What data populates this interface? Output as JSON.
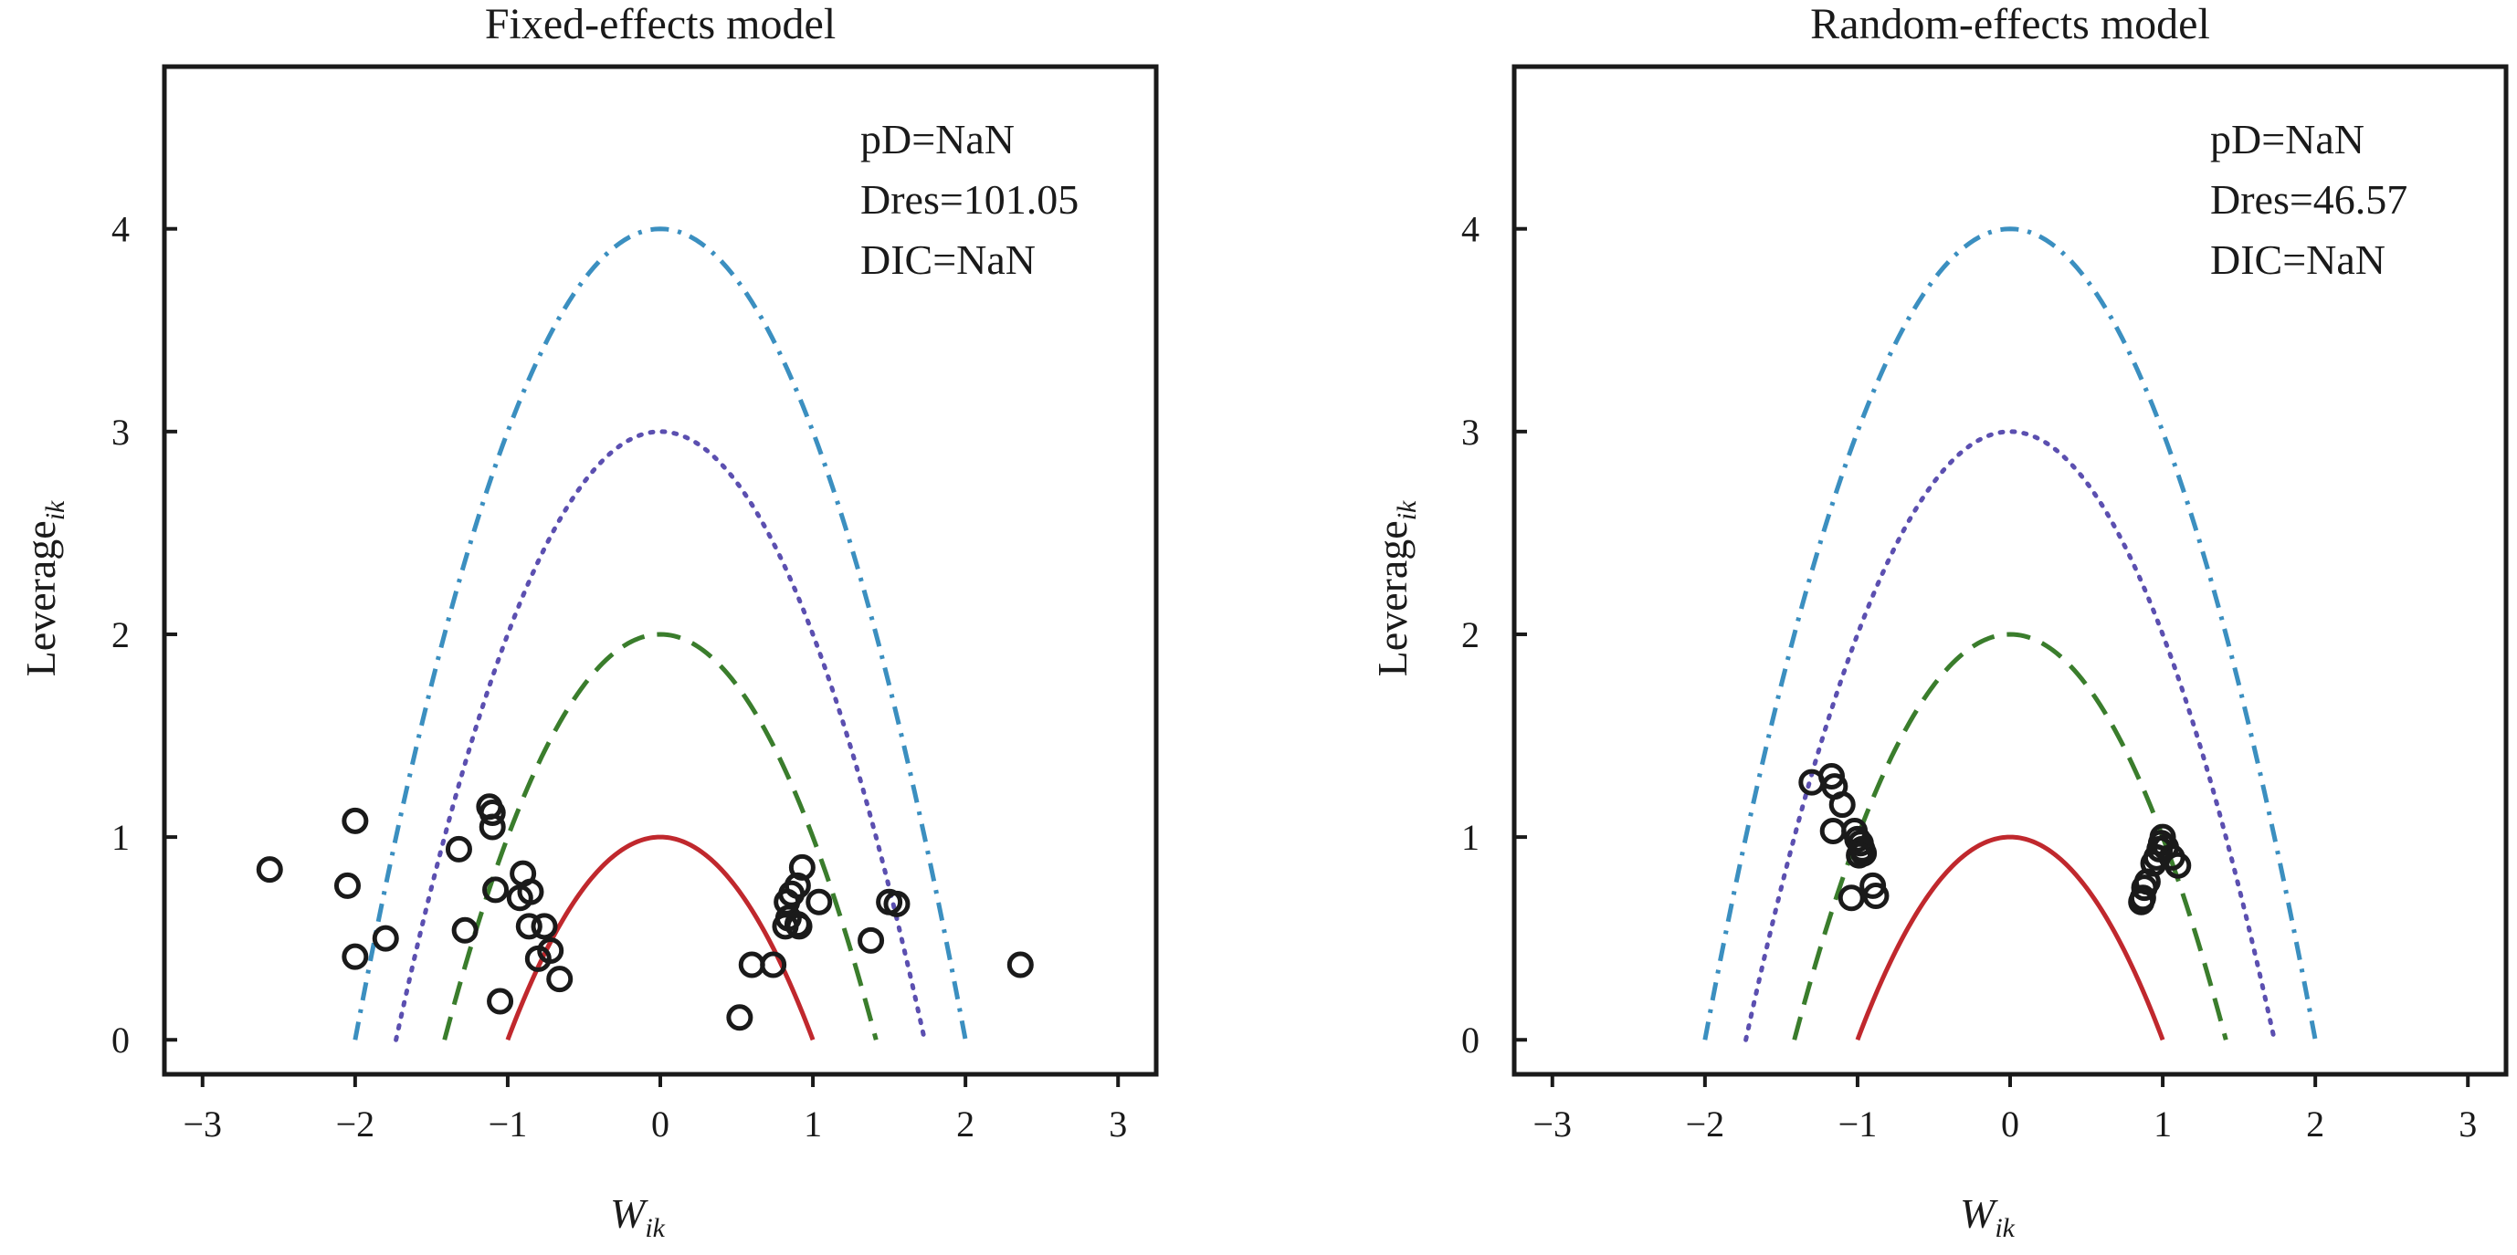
{
  "chart_data": [
    {
      "type": "scatter",
      "title": "Fixed-effects model",
      "xlabel": "W",
      "xlabel_sub": "ik",
      "ylabel": "Leverage",
      "ylabel_sub": "ik",
      "xlim": [
        -3.25,
        3.25
      ],
      "ylim": [
        -0.17,
        4.8
      ],
      "xticks": [
        -3,
        -2,
        -1,
        0,
        1,
        2,
        3
      ],
      "yticks": [
        0,
        1,
        2,
        3,
        4
      ],
      "annotations": [
        "pD=NaN",
        "Dres=101.05",
        "DIC=NaN"
      ],
      "curves": [
        {
          "c": 1,
          "style": "solid",
          "color": "#c0282d"
        },
        {
          "c": 2,
          "style": "dashed",
          "color": "#3a7d2c"
        },
        {
          "c": 3,
          "style": "dotted",
          "color": "#5b4fb0"
        },
        {
          "c": 4,
          "style": "dashdot",
          "color": "#3b8fc0"
        }
      ],
      "points": [
        [
          -2.56,
          0.84
        ],
        [
          -2.0,
          1.08
        ],
        [
          -2.05,
          0.76
        ],
        [
          -1.8,
          0.5
        ],
        [
          -2.0,
          0.41
        ],
        [
          -1.12,
          1.15
        ],
        [
          -1.1,
          1.12
        ],
        [
          -1.1,
          1.05
        ],
        [
          -1.32,
          0.94
        ],
        [
          -1.28,
          0.54
        ],
        [
          -1.08,
          0.74
        ],
        [
          -0.9,
          0.82
        ],
        [
          -0.92,
          0.7
        ],
        [
          -0.85,
          0.73
        ],
        [
          -0.86,
          0.56
        ],
        [
          -0.76,
          0.56
        ],
        [
          -0.8,
          0.4
        ],
        [
          -0.72,
          0.44
        ],
        [
          -0.66,
          0.3
        ],
        [
          -1.05,
          0.19
        ],
        [
          0.93,
          0.85
        ],
        [
          0.9,
          0.76
        ],
        [
          0.86,
          0.72
        ],
        [
          0.83,
          0.68
        ],
        [
          1.04,
          0.68
        ],
        [
          0.84,
          0.6
        ],
        [
          0.82,
          0.56
        ],
        [
          0.9,
          0.57
        ],
        [
          0.91,
          0.56
        ],
        [
          0.6,
          0.37
        ],
        [
          0.74,
          0.37
        ],
        [
          0.52,
          0.11
        ],
        [
          1.38,
          0.49
        ],
        [
          1.5,
          0.68
        ],
        [
          1.55,
          0.67
        ],
        [
          2.36,
          0.37
        ]
      ]
    },
    {
      "type": "scatter",
      "title": "Random-effects model",
      "xlabel": "W",
      "xlabel_sub": "ik",
      "ylabel": "Leverage",
      "ylabel_sub": "ik",
      "xlim": [
        -3.25,
        3.25
      ],
      "ylim": [
        -0.17,
        4.8
      ],
      "xticks": [
        -3,
        -2,
        -1,
        0,
        1,
        2,
        3
      ],
      "yticks": [
        0,
        1,
        2,
        3,
        4
      ],
      "annotations": [
        "pD=NaN",
        "Dres=46.57",
        "DIC=NaN"
      ],
      "curves": [
        {
          "c": 1,
          "style": "solid",
          "color": "#c0282d"
        },
        {
          "c": 2,
          "style": "dashed",
          "color": "#3a7d2c"
        },
        {
          "c": 3,
          "style": "dotted",
          "color": "#5b4fb0"
        },
        {
          "c": 4,
          "style": "dashdot",
          "color": "#3b8fc0"
        }
      ],
      "points": [
        [
          -1.3,
          1.27
        ],
        [
          -1.17,
          1.3
        ],
        [
          -1.15,
          1.25
        ],
        [
          -1.1,
          1.16
        ],
        [
          -1.16,
          1.03
        ],
        [
          -1.02,
          1.03
        ],
        [
          -1.0,
          0.99
        ],
        [
          -0.98,
          0.97
        ],
        [
          -0.97,
          0.94
        ],
        [
          -0.96,
          0.92
        ],
        [
          -0.99,
          0.91
        ],
        [
          -1.04,
          0.7
        ],
        [
          -0.9,
          0.76
        ],
        [
          -0.88,
          0.71
        ],
        [
          1.0,
          1.0
        ],
        [
          0.99,
          0.97
        ],
        [
          0.98,
          0.94
        ],
        [
          0.96,
          0.9
        ],
        [
          0.94,
          0.87
        ],
        [
          1.02,
          0.95
        ],
        [
          1.06,
          0.9
        ],
        [
          1.1,
          0.86
        ],
        [
          0.9,
          0.78
        ],
        [
          0.88,
          0.75
        ],
        [
          0.87,
          0.7
        ],
        [
          0.86,
          0.68
        ]
      ]
    }
  ]
}
